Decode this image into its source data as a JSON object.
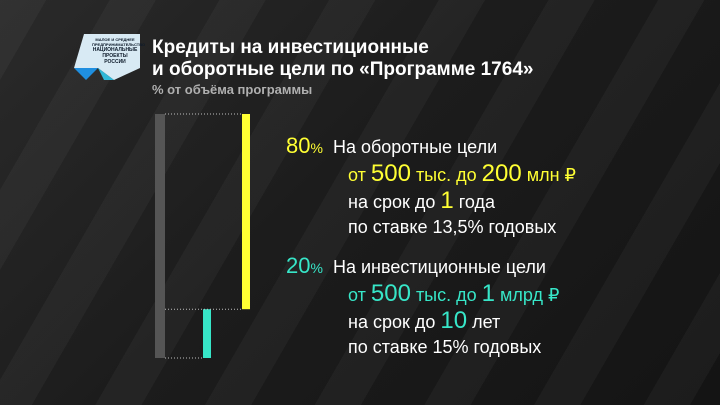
{
  "logo": {
    "line1": "МАЛОЕ И СРЕДНЕЕ",
    "line2": "ПРЕДПРИНИМАТЕЛЬСТВО",
    "line3": "НАЦИОНАЛЬНЫЕ",
    "line4": "ПРОЕКТЫ",
    "line5": "РОССИИ"
  },
  "title_line1": "Кредиты на инвестиционные",
  "title_line2": "и оборотные цели по «Программе 1764»",
  "subtitle": "% от объёма программы",
  "colors": {
    "yellow": "#ffff33",
    "teal": "#37e6c8",
    "gray": "#555555",
    "text": "#ffffff"
  },
  "chart_data": {
    "type": "bar",
    "series": [
      {
        "name": "На оборотные цели",
        "value": 80,
        "color": "#ffff33"
      },
      {
        "name": "На инвестиционные цели",
        "value": 20,
        "color": "#37e6c8"
      }
    ],
    "total": 100,
    "ylim": [
      0,
      100
    ]
  },
  "block1": {
    "pct_num": "80",
    "pct_sign": "%",
    "line1": "На оборотные цели",
    "l2_a": "от",
    "l2_n1": "500",
    "l2_b": "тыс. до",
    "l2_n2": "200",
    "l2_c": "млн ₽",
    "l3_a": "на срок до",
    "l3_n": "1",
    "l3_b": "года",
    "line4": "по ставке 13,5% годовых"
  },
  "block2": {
    "pct_num": "20",
    "pct_sign": "%",
    "line1": "На инвестиционные цели",
    "l2_a": "от",
    "l2_n1": "500",
    "l2_b": "тыс. до",
    "l2_n2": "1",
    "l2_c": "млрд ₽",
    "l3_a": "на срок до",
    "l3_n": "10",
    "l3_b": "лет",
    "line4": "по ставке 15% годовых"
  }
}
